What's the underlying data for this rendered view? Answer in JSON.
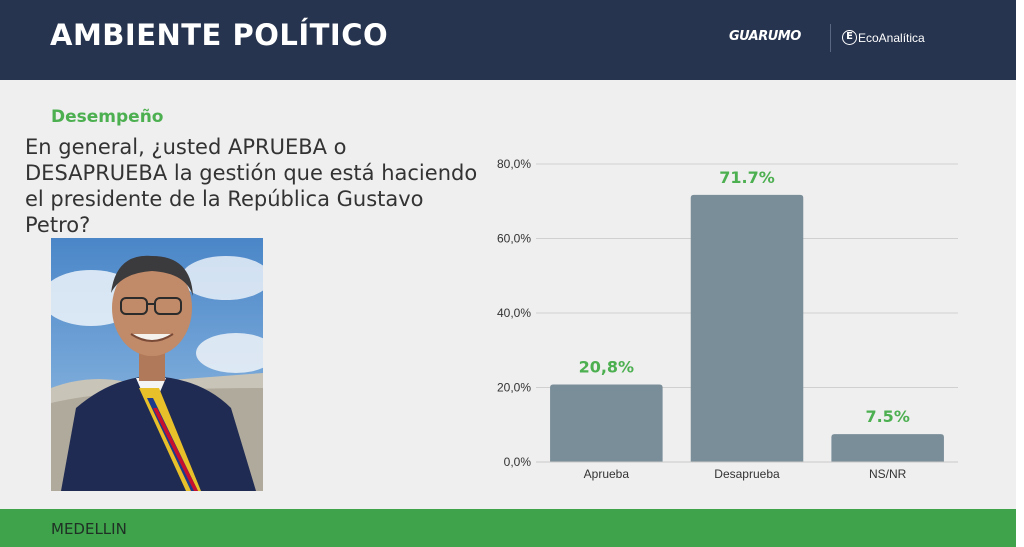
{
  "header": {
    "title": "AMBIENTE POLÍTICO",
    "brand_primary": "GUARUMO",
    "brand_secondary": "EcoAnalítica",
    "background": "#27344f"
  },
  "section": {
    "label": "Desempeño"
  },
  "question": "En general, ¿usted APRUEBA o DESAPRUEBA la gestión que está haciendo el presidente de la República Gustavo Petro?",
  "footer": {
    "label": "MEDELLIN",
    "background": "#3ea34b"
  },
  "chart_data": {
    "type": "bar",
    "categories": [
      "Aprueba",
      "Desaprueba",
      "NS/NR"
    ],
    "values": [
      20.8,
      71.7,
      7.5
    ],
    "data_labels": [
      "20,8%",
      "71.7%",
      "7.5%"
    ],
    "y_ticks": [
      "0,0%",
      "20,0%",
      "40,0%",
      "60,0%",
      "80,0%"
    ],
    "ylim": [
      0,
      80
    ],
    "grid": true,
    "title": "",
    "xlabel": "",
    "ylabel": "",
    "bar_color": "#7a8e99",
    "label_color": "#4caf50"
  }
}
